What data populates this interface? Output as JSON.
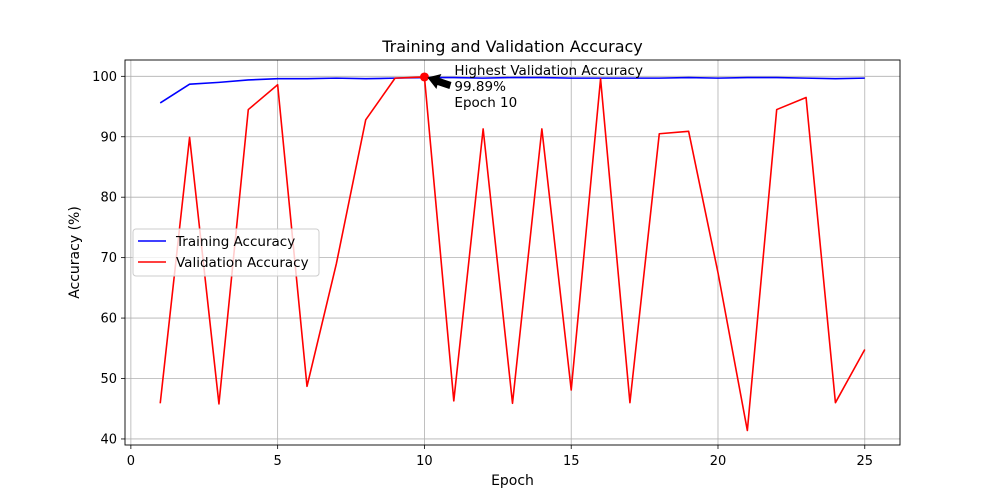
{
  "chart_data": {
    "type": "line",
    "title": "Training and Validation Accuracy",
    "xlabel": "Epoch",
    "ylabel": "Accuracy (%)",
    "xlim": [
      -0.2,
      26.2
    ],
    "ylim": [
      39.0,
      102.7
    ],
    "xticks": [
      0,
      5,
      10,
      15,
      20,
      25
    ],
    "yticks": [
      40,
      50,
      60,
      70,
      80,
      90,
      100
    ],
    "grid": true,
    "legend_position": "center-left",
    "x": [
      1,
      2,
      3,
      4,
      5,
      6,
      7,
      8,
      9,
      10,
      11,
      12,
      13,
      14,
      15,
      16,
      17,
      18,
      19,
      20,
      21,
      22,
      23,
      24,
      25
    ],
    "series": [
      {
        "name": "Training Accuracy",
        "color": "#0000ff",
        "values": [
          95.6,
          98.7,
          99.0,
          99.4,
          99.6,
          99.6,
          99.7,
          99.6,
          99.7,
          99.8,
          99.8,
          99.7,
          99.8,
          99.8,
          99.7,
          99.7,
          99.7,
          99.7,
          99.8,
          99.7,
          99.8,
          99.8,
          99.7,
          99.6,
          99.7
        ]
      },
      {
        "name": "Validation Accuracy",
        "color": "#ff0000",
        "values": [
          45.9,
          89.9,
          45.8,
          94.5,
          98.6,
          48.7,
          69.0,
          92.8,
          99.7,
          99.89,
          46.3,
          91.3,
          45.9,
          91.3,
          48.1,
          99.6,
          46.0,
          90.5,
          90.9,
          67.5,
          41.4,
          94.5,
          96.5,
          46.0,
          54.8
        ]
      }
    ],
    "annotations": [
      {
        "x": 10,
        "y": 99.89,
        "marker_color": "#ff0000",
        "lines": [
          "Highest Validation Accuracy",
          "99.89%",
          "Epoch 10"
        ]
      }
    ]
  }
}
